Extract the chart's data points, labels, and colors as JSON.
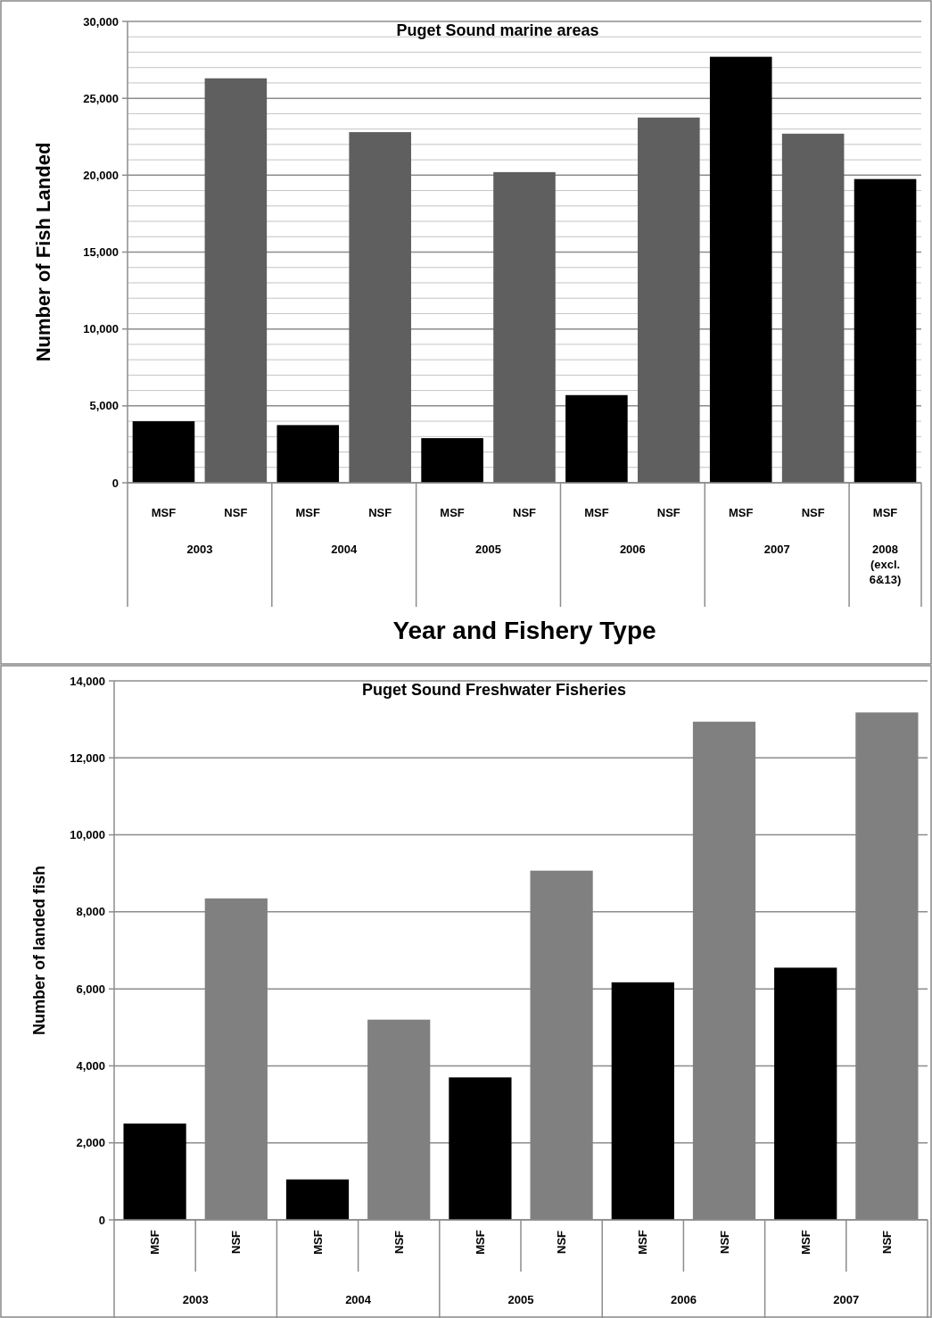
{
  "chart_data": [
    {
      "type": "bar",
      "title": "Puget Sound marine areas",
      "ylabel": "Number of Fish Landed",
      "xlabel": "Year and Fishery Type",
      "categories": [
        "MSF",
        "NSF",
        "MSF",
        "NSF",
        "MSF",
        "NSF",
        "MSF",
        "NSF",
        "MSF",
        "NSF",
        "MSF"
      ],
      "values": [
        4000,
        26300,
        3750,
        22800,
        2900,
        20200,
        5700,
        23750,
        27700,
        22700,
        19750
      ],
      "colors": [
        "#000000",
        "#5f5f5f",
        "#000000",
        "#5f5f5f",
        "#000000",
        "#5f5f5f",
        "#000000",
        "#5f5f5f",
        "#000000",
        "#5f5f5f",
        "#000000"
      ],
      "annotations": [
        "2003",
        "2004",
        "2005",
        "2006",
        "2007",
        "2008 (excl. 6&13)"
      ],
      "ylim": [
        0,
        30000
      ],
      "yticks": [
        0,
        {
          "value": 1000,
          "label": null
        },
        {
          "value": 2000,
          "label": null
        },
        {
          "value": 3000,
          "label": null
        },
        {
          "value": 4000,
          "label": null
        },
        {
          "value": 5000,
          "label": "5,000"
        },
        {
          "value": 6000,
          "label": null
        },
        {
          "value": 7000,
          "label": null
        },
        {
          "value": 8000,
          "label": null
        },
        {
          "value": 9000,
          "label": null
        },
        {
          "value": 10000,
          "label": "10,000"
        },
        {
          "value": 11000,
          "label": null
        },
        {
          "value": 12000,
          "label": null
        },
        {
          "value": 13000,
          "label": null
        },
        {
          "value": 14000,
          "label": null
        },
        {
          "value": 15000,
          "label": "15,000"
        },
        {
          "value": 16000,
          "label": null
        },
        {
          "value": 17000,
          "label": null
        },
        {
          "value": 18000,
          "label": null
        },
        {
          "value": 19000,
          "label": null
        },
        {
          "value": 20000,
          "label": "20,000"
        },
        {
          "value": 21000,
          "label": null
        },
        {
          "value": 22000,
          "label": null
        },
        {
          "value": 23000,
          "label": null
        },
        {
          "value": 24000,
          "label": null
        },
        {
          "value": 25000,
          "label": "25,000"
        },
        {
          "value": 26000,
          "label": null
        },
        {
          "value": 27000,
          "label": null
        },
        {
          "value": 28000,
          "label": null
        },
        {
          "value": 29000,
          "label": null
        },
        {
          "value": 30000,
          "label": "30,000"
        }
      ],
      "grid": "y"
    },
    {
      "type": "bar",
      "title": "Puget Sound Freshwater Fisheries",
      "ylabel": "Number of landed fish",
      "categories": [
        "MSF",
        "NSF",
        "MSF",
        "NSF",
        "MSF",
        "NSF",
        "MSF",
        "NSF",
        "MSF",
        "NSF"
      ],
      "values": [
        2500,
        8350,
        1050,
        5200,
        3700,
        9070,
        6170,
        12940,
        6550,
        13180
      ],
      "colors": [
        "#000000",
        "#808080",
        "#000000",
        "#808080",
        "#000000",
        "#808080",
        "#000000",
        "#808080",
        "#000000",
        "#808080"
      ],
      "annotations": [
        "2003",
        "2004",
        "2005",
        "2006",
        "2007"
      ],
      "ylim": [
        0,
        14000
      ],
      "yticks": [
        0,
        {
          "value": 2000,
          "label": "2,000"
        },
        {
          "value": 4000,
          "label": "4,000"
        },
        {
          "value": 6000,
          "label": "6,000"
        },
        {
          "value": 8000,
          "label": "8,000"
        },
        {
          "value": 10000,
          "label": "10,000"
        },
        {
          "value": 12000,
          "label": "12,000"
        },
        {
          "value": 14000,
          "label": "14,000"
        }
      ],
      "grid": "y"
    }
  ]
}
